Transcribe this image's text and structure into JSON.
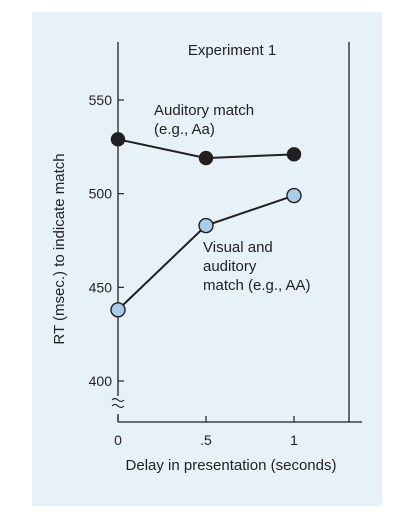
{
  "chart_data": {
    "type": "line",
    "title": "Experiment 1",
    "xlabel": "Delay in presentation (seconds)",
    "ylabel": "RT (msec.) to indicate match",
    "x_ticks": [
      "0",
      ".5",
      "1"
    ],
    "y_ticks": [
      "400",
      "450",
      "500",
      "550"
    ],
    "xlim": [
      0,
      1.35
    ],
    "ylim": [
      390,
      570
    ],
    "y_axis_break": true,
    "grid": false,
    "series": [
      {
        "name": "Auditory match (e.g., Aa)",
        "label_lines": [
          "Auditory match",
          "(e.g., Aa)"
        ],
        "x": [
          0,
          0.5,
          1
        ],
        "y": [
          529,
          519,
          521
        ],
        "marker": "filled-circle",
        "color": "#231f20"
      },
      {
        "name": "Visual and auditory match (e.g., AA)",
        "label_lines": [
          "Visual and",
          "auditory",
          "match (e.g., AA)"
        ],
        "x": [
          0,
          0.5,
          1
        ],
        "y": [
          438,
          483,
          499
        ],
        "marker": "open-circle",
        "color": "#a9cde8"
      }
    ]
  }
}
